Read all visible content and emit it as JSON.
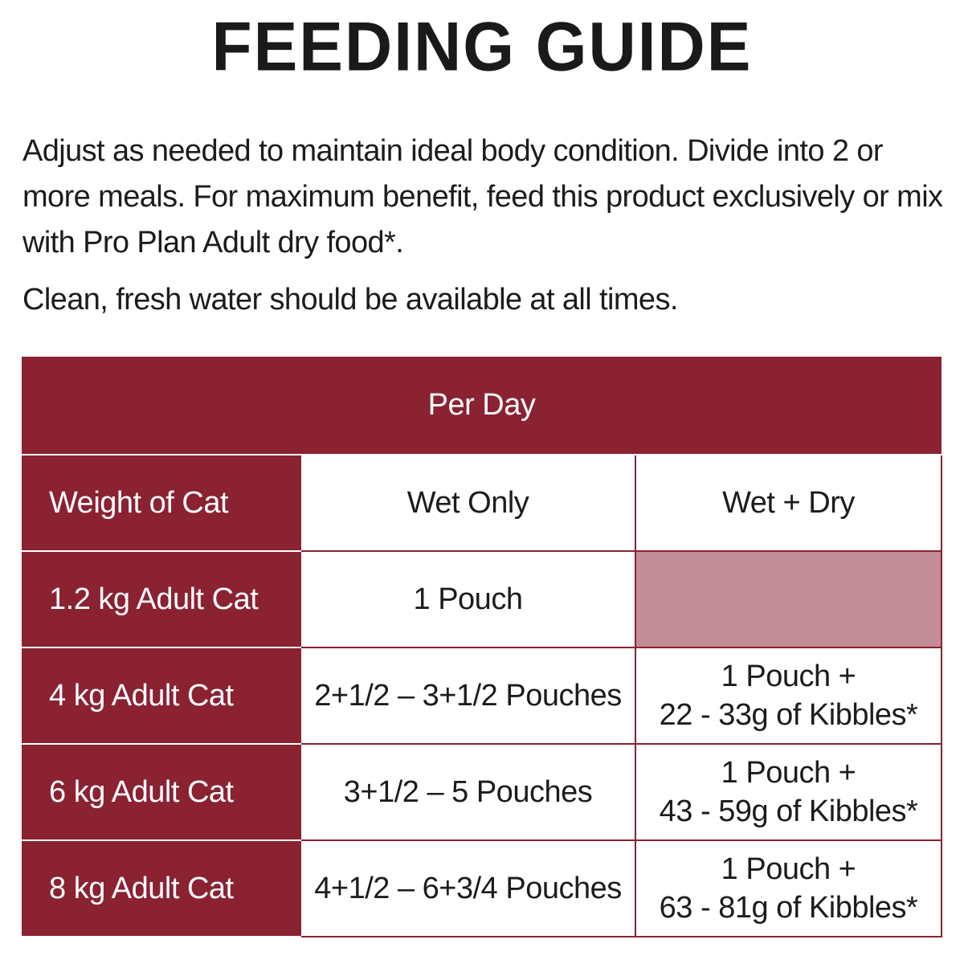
{
  "title": "FEEDING GUIDE",
  "intro": {
    "paragraph": "Adjust as needed to maintain ideal body condition. Divide into 2 or more meals. For maximum benefit, feed this product exclusively or mix with Pro Plan Adult dry food*.",
    "water_note": "Clean, fresh water should be available at all times."
  },
  "table": {
    "group_header": "Per Day",
    "columns": [
      "Weight of Cat",
      "Wet Only",
      "Wet + Dry"
    ],
    "rows": [
      {
        "weight": "1.2 kg Adult Cat",
        "wet_only": "1 Pouch",
        "wet_dry_1": "",
        "wet_dry_2": ""
      },
      {
        "weight": "4 kg Adult Cat",
        "wet_only": "2+1/2 – 3+1/2 Pouches",
        "wet_dry_1": "1 Pouch +",
        "wet_dry_2": "22 - 33g of Kibbles*"
      },
      {
        "weight": "6 kg Adult Cat",
        "wet_only": "3+1/2 – 5 Pouches",
        "wet_dry_1": "1 Pouch +",
        "wet_dry_2": "43 - 59g of Kibbles*"
      },
      {
        "weight": "8 kg Adult Cat",
        "wet_only": "4+1/2 – 6+3/4 Pouches",
        "wet_dry_1": "1 Pouch +",
        "wet_dry_2": "63 - 81g of Kibbles*"
      }
    ]
  },
  "colors": {
    "brand_red": "#8a2232",
    "empty_cell_pink": "#c28d96",
    "text": "#1c1c1c"
  }
}
